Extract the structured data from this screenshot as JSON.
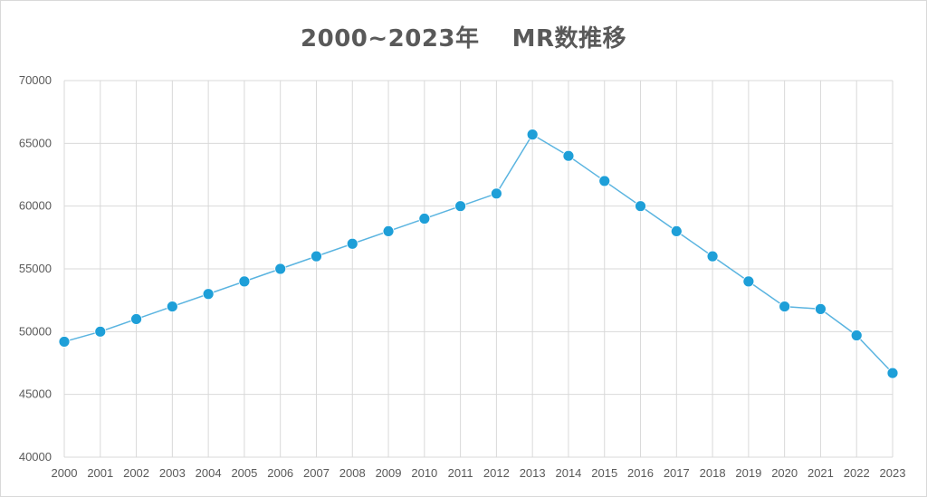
{
  "chart_data": {
    "type": "line",
    "title": "2000~2023年　 MR数推移",
    "x": [
      "2000",
      "2001",
      "2002",
      "2003",
      "2004",
      "2005",
      "2006",
      "2007",
      "2008",
      "2009",
      "2010",
      "2011",
      "2012",
      "2013",
      "2014",
      "2015",
      "2016",
      "2017",
      "2018",
      "2019",
      "2020",
      "2021",
      "2022",
      "2023"
    ],
    "series": [
      {
        "values": [
          49200,
          50000,
          51000,
          52000,
          53000,
          54000,
          55000,
          56000,
          57000,
          58000,
          59000,
          60000,
          61000,
          65700,
          64000,
          62000,
          60000,
          58000,
          56000,
          54000,
          52000,
          51800,
          49700,
          46700
        ],
        "color": "#1e9fd8",
        "line_color": "#5ab4e0"
      }
    ],
    "yticks": [
      "40000",
      "45000",
      "50000",
      "55000",
      "60000",
      "65000",
      "70000"
    ],
    "ylim": [
      40000,
      70000
    ],
    "grid": true,
    "legend": "none",
    "xlabel": "",
    "ylabel": ""
  }
}
